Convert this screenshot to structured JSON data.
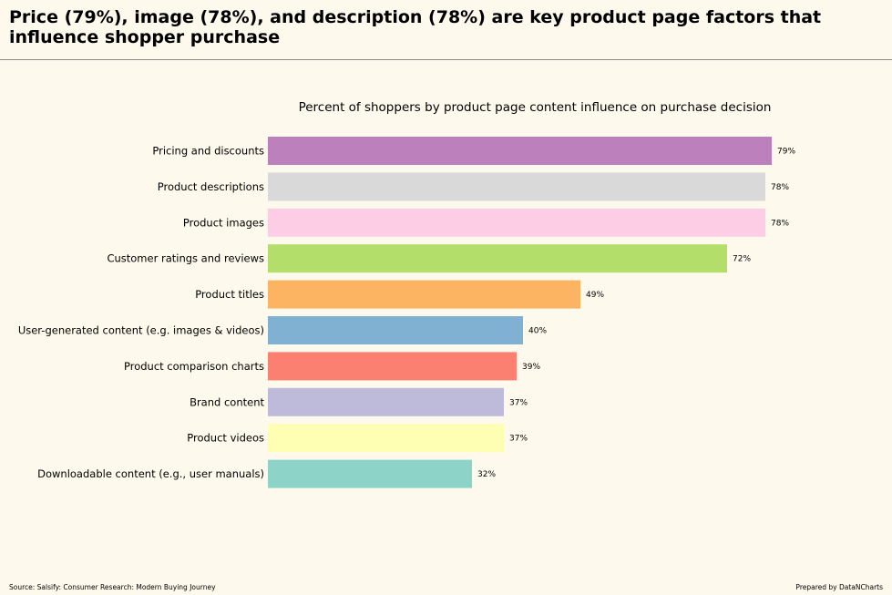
{
  "header": {
    "title": "Price (79%), image (78%), and description (78%) are key product page factors that influence shopper purchase"
  },
  "chart_data": {
    "type": "bar",
    "orientation": "horizontal",
    "title": "Percent of shoppers by product page content influence on purchase decision",
    "xlabel": "",
    "ylabel": "",
    "xlim": [
      0,
      100
    ],
    "grid": false,
    "value_suffix": "%",
    "categories": [
      "Pricing and discounts",
      "Product descriptions",
      "Product images",
      "Customer ratings and reviews",
      "Product titles",
      "User-generated content (e.g. images & videos)",
      "Product comparison charts",
      "Brand content",
      "Product videos",
      "Downloadable content (e.g., user manuals)"
    ],
    "values": [
      79,
      78,
      78,
      72,
      49,
      40,
      39,
      37,
      37,
      32
    ],
    "colors": [
      "#bc80bd",
      "#d9d9d9",
      "#fccde5",
      "#b3de69",
      "#fdb462",
      "#80b1d3",
      "#fb8072",
      "#bebada",
      "#ffffb3",
      "#8dd3c7"
    ]
  },
  "footer": {
    "source": "Source: Salsify: Consumer Research: Modern Buying Journey",
    "credit": "Prepared by DataNCharts"
  }
}
